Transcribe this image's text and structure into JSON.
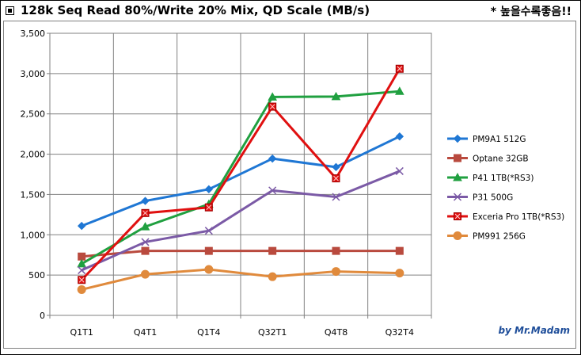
{
  "header": {
    "title": "128k Seq Read 80%/Write 20% Mix, QD Scale (MB/s)",
    "note": "* 높을수록좋음!!"
  },
  "credit": "by Mr.Madam",
  "chart_data": {
    "type": "line",
    "categories": [
      "Q1T1",
      "Q4T1",
      "Q1T4",
      "Q32T1",
      "Q4T8",
      "Q32T4"
    ],
    "ylim": [
      0,
      3500
    ],
    "yticks": [
      0,
      500,
      1000,
      1500,
      2000,
      2500,
      3000,
      3500
    ],
    "ytick_labels": [
      "0",
      "500",
      "1,000",
      "1,500",
      "2,000",
      "2,500",
      "3,000",
      "3,500"
    ],
    "grid": true,
    "legend_position": "right",
    "series": [
      {
        "name": "PM9A1 512G",
        "color": "#1f77d4",
        "marker": "diamond",
        "values": [
          1110,
          1420,
          1565,
          1945,
          1840,
          2220
        ]
      },
      {
        "name": "Optane 32GB",
        "color": "#b94a3e",
        "marker": "square",
        "values": [
          730,
          800,
          800,
          800,
          800,
          800
        ]
      },
      {
        "name": "P41 1TB(*RS3)",
        "color": "#20a040",
        "marker": "triangle",
        "values": [
          640,
          1100,
          1380,
          2710,
          2715,
          2780
        ]
      },
      {
        "name": "P31 500G",
        "color": "#7b5aa6",
        "marker": "x",
        "values": [
          560,
          910,
          1050,
          1550,
          1470,
          1790
        ]
      },
      {
        "name": "Exceria Pro 1TB(*RS3)",
        "color": "#e01010",
        "marker": "square-star",
        "values": [
          440,
          1270,
          1340,
          2590,
          1700,
          3060
        ]
      },
      {
        "name": "PM991 256G",
        "color": "#e08a3c",
        "marker": "circle",
        "values": [
          320,
          510,
          570,
          480,
          545,
          525
        ]
      }
    ]
  }
}
